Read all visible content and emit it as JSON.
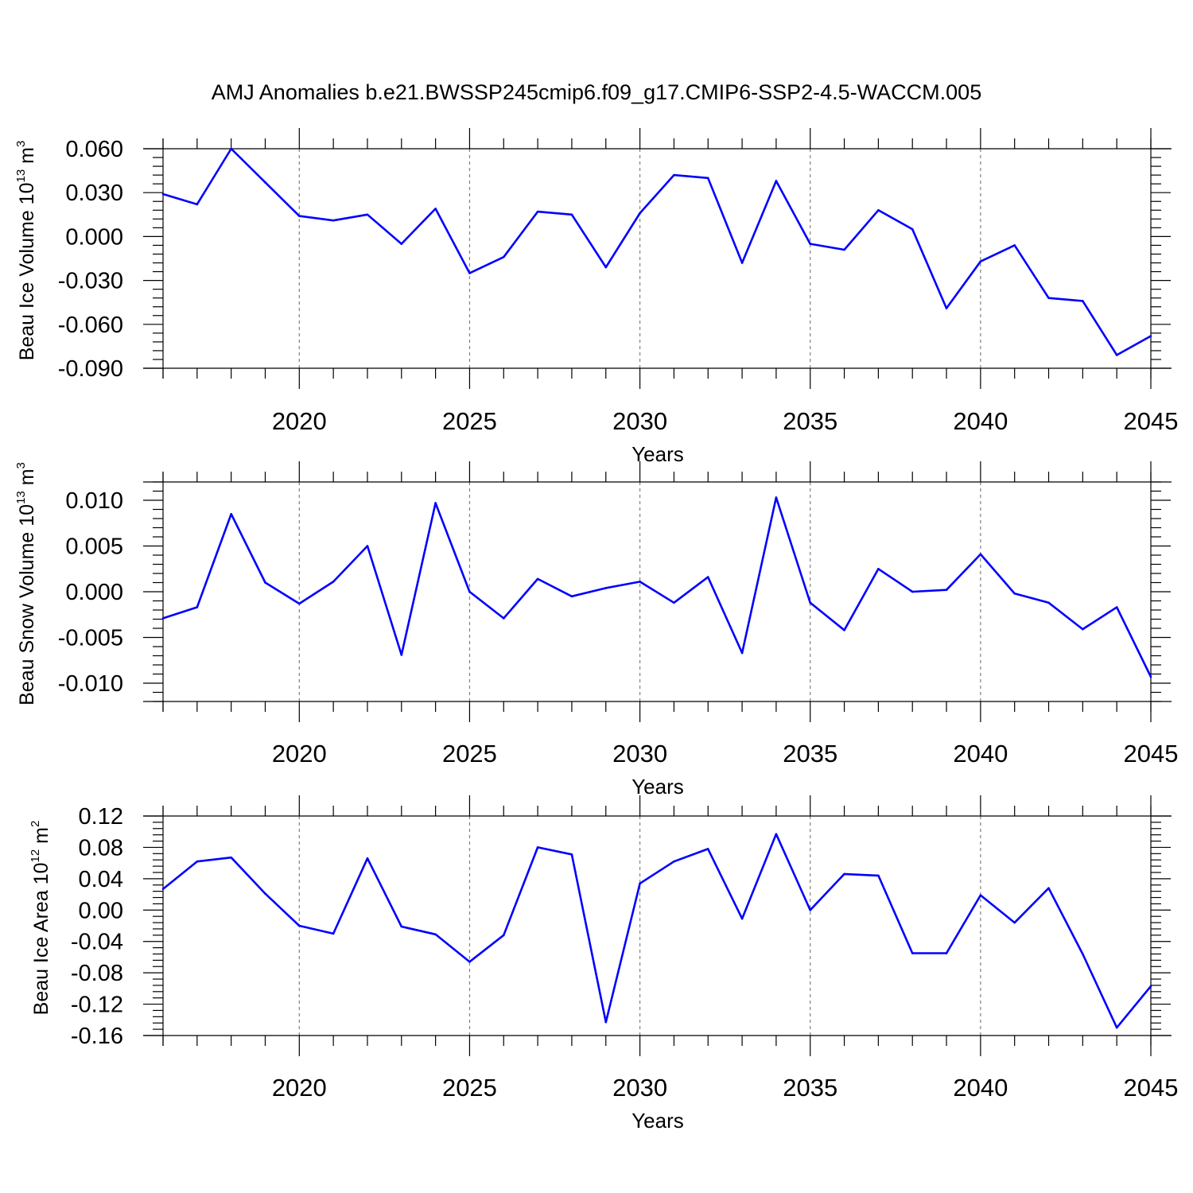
{
  "title": "AMJ Anomalies b.e21.BWSSP245cmip6.f09_g17.CMIP6-SSP2-4.5-WACCM.005",
  "colors": {
    "line": "#0000ff",
    "axis": "#000000",
    "grid": "#808080"
  },
  "chart_data": [
    {
      "type": "line",
      "xlabel": "Years",
      "ylabel": {
        "prefix": "Beau Ice Volume 10",
        "exp": "13",
        "unit": " m",
        "unit_exp": "3"
      },
      "xlim": [
        2016,
        2045
      ],
      "ylim": [
        -0.09,
        0.06
      ],
      "yticks": [
        {
          "value": 0.06,
          "label": "0.060"
        },
        {
          "value": 0.03,
          "label": "0.030"
        },
        {
          "value": 0.0,
          "label": "0.000"
        },
        {
          "value": -0.03,
          "label": "-0.030"
        },
        {
          "value": -0.06,
          "label": "-0.060"
        },
        {
          "value": -0.09,
          "label": "-0.090"
        }
      ],
      "xticks": [
        {
          "value": 2020,
          "label": "2020"
        },
        {
          "value": 2025,
          "label": "2025"
        },
        {
          "value": 2030,
          "label": "2030"
        },
        {
          "value": 2035,
          "label": "2035"
        },
        {
          "value": 2040,
          "label": "2040"
        },
        {
          "value": 2045,
          "label": "2045"
        }
      ],
      "series": [
        {
          "name": "Beau Ice Volume",
          "x": [
            2016,
            2017,
            2018,
            2019,
            2020,
            2021,
            2022,
            2023,
            2024,
            2025,
            2026,
            2027,
            2028,
            2029,
            2030,
            2031,
            2032,
            2033,
            2034,
            2035,
            2036,
            2037,
            2038,
            2039,
            2040,
            2041,
            2042,
            2043,
            2044,
            2045
          ],
          "values": [
            0.029,
            0.022,
            0.06,
            0.037,
            0.014,
            0.011,
            0.015,
            -0.005,
            0.019,
            -0.025,
            -0.014,
            0.017,
            0.015,
            -0.021,
            0.016,
            0.042,
            0.04,
            -0.018,
            0.038,
            -0.005,
            -0.009,
            0.018,
            0.005,
            -0.049,
            -0.017,
            -0.006,
            -0.042,
            -0.044,
            -0.081,
            -0.068
          ]
        }
      ]
    },
    {
      "type": "line",
      "xlabel": "Years",
      "ylabel": {
        "prefix": "Beau Snow Volume 10",
        "exp": "13",
        "unit": " m",
        "unit_exp": "3"
      },
      "xlim": [
        2016,
        2045
      ],
      "ylim": [
        -0.012,
        0.012
      ],
      "yticks": [
        {
          "value": 0.01,
          "label": "0.010"
        },
        {
          "value": 0.005,
          "label": "0.005"
        },
        {
          "value": 0.0,
          "label": "0.000"
        },
        {
          "value": -0.005,
          "label": "-0.005"
        },
        {
          "value": -0.01,
          "label": "-0.010"
        }
      ],
      "xticks": [
        {
          "value": 2020,
          "label": "2020"
        },
        {
          "value": 2025,
          "label": "2025"
        },
        {
          "value": 2030,
          "label": "2030"
        },
        {
          "value": 2035,
          "label": "2035"
        },
        {
          "value": 2040,
          "label": "2040"
        },
        {
          "value": 2045,
          "label": "2045"
        }
      ],
      "series": [
        {
          "name": "Beau Snow Volume",
          "x": [
            2016,
            2017,
            2018,
            2019,
            2020,
            2021,
            2022,
            2023,
            2024,
            2025,
            2026,
            2027,
            2028,
            2029,
            2030,
            2031,
            2032,
            2033,
            2034,
            2035,
            2036,
            2037,
            2038,
            2039,
            2040,
            2041,
            2042,
            2043,
            2044,
            2045
          ],
          "values": [
            -0.0029,
            -0.0017,
            0.0085,
            0.001,
            -0.0013,
            0.0011,
            0.005,
            -0.0069,
            0.0097,
            0.0,
            -0.0029,
            0.0014,
            -0.0005,
            0.0004,
            0.0011,
            -0.0012,
            0.0016,
            -0.0067,
            0.0103,
            -0.0012,
            -0.0042,
            0.0025,
            0.0,
            0.0002,
            0.0041,
            -0.0002,
            -0.0012,
            -0.0041,
            -0.0017,
            -0.0093
          ]
        }
      ]
    },
    {
      "type": "line",
      "xlabel": "Years",
      "ylabel": {
        "prefix": "Beau Ice Area 10",
        "exp": "12",
        "unit": " m",
        "unit_exp": "2"
      },
      "xlim": [
        2016,
        2045
      ],
      "ylim": [
        -0.16,
        0.12
      ],
      "yticks": [
        {
          "value": 0.12,
          "label": "0.12"
        },
        {
          "value": 0.08,
          "label": "0.08"
        },
        {
          "value": 0.04,
          "label": "0.04"
        },
        {
          "value": 0.0,
          "label": "0.00"
        },
        {
          "value": -0.04,
          "label": "-0.04"
        },
        {
          "value": -0.08,
          "label": "-0.08"
        },
        {
          "value": -0.12,
          "label": "-0.12"
        },
        {
          "value": -0.16,
          "label": "-0.16"
        }
      ],
      "xticks": [
        {
          "value": 2020,
          "label": "2020"
        },
        {
          "value": 2025,
          "label": "2025"
        },
        {
          "value": 2030,
          "label": "2030"
        },
        {
          "value": 2035,
          "label": "2035"
        },
        {
          "value": 2040,
          "label": "2040"
        },
        {
          "value": 2045,
          "label": "2045"
        }
      ],
      "series": [
        {
          "name": "Beau Ice Area",
          "x": [
            2016,
            2017,
            2018,
            2019,
            2020,
            2021,
            2022,
            2023,
            2024,
            2025,
            2026,
            2027,
            2028,
            2029,
            2030,
            2031,
            2032,
            2033,
            2034,
            2035,
            2036,
            2037,
            2038,
            2039,
            2040,
            2041,
            2042,
            2043,
            2044,
            2045
          ],
          "values": [
            0.027,
            0.062,
            0.067,
            0.021,
            -0.02,
            -0.03,
            0.066,
            -0.021,
            -0.031,
            -0.066,
            -0.032,
            0.08,
            0.071,
            -0.143,
            0.034,
            0.062,
            0.078,
            -0.011,
            0.097,
            0.0,
            0.046,
            0.044,
            -0.055,
            -0.055,
            0.019,
            -0.016,
            0.028,
            -0.056,
            -0.15,
            -0.097
          ]
        }
      ]
    }
  ]
}
